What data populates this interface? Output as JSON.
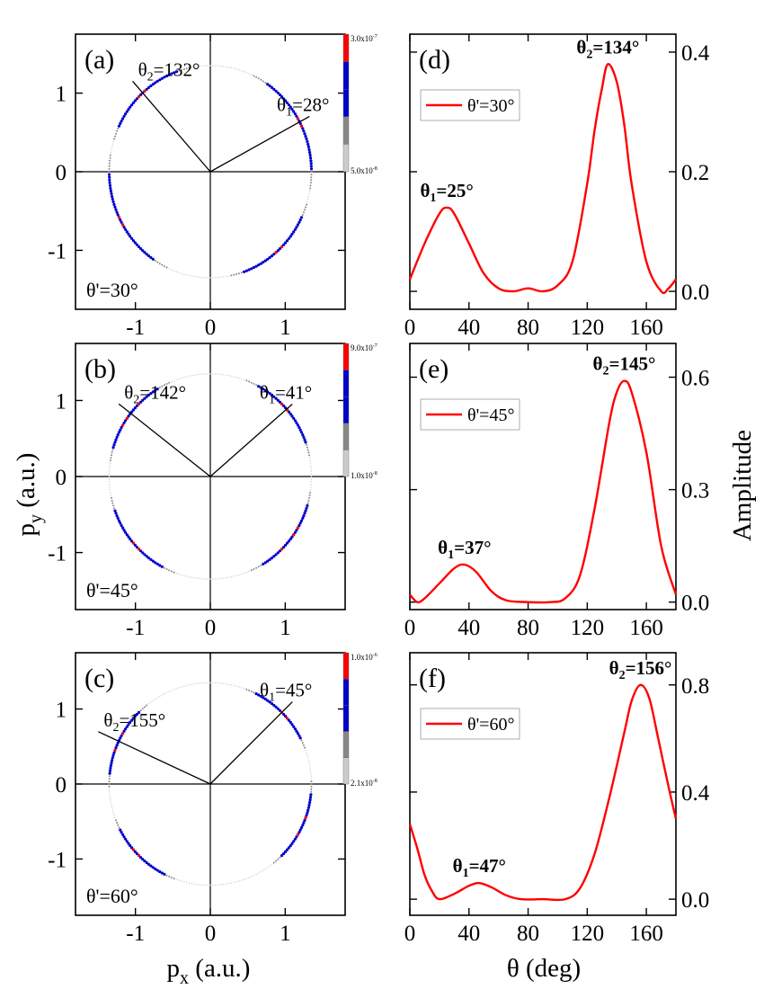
{
  "figure": {
    "ylabel_left": {
      "main": "p",
      "sub": "y",
      "unit": " (a.u.)"
    },
    "xlabel_left": {
      "main": "p",
      "sub": "x",
      "unit": " (a.u.)"
    },
    "ylabel_right": "Amplitude",
    "xlabel_right": "θ (deg)"
  },
  "colors": {
    "curve": "#ff0000",
    "axis": "#000000",
    "blue": "#0000cc",
    "red": "#ff0000",
    "gray": "#888888",
    "light": "#cccccc"
  },
  "chart_data": [
    {
      "id": "a",
      "panel_label": "(a)",
      "type": "scatter",
      "xlim": [
        -1.8,
        1.8
      ],
      "ylim": [
        -1.75,
        1.75
      ],
      "xticks": [
        -1,
        0,
        1
      ],
      "xtick_labels": [
        "-1",
        "0",
        "1"
      ],
      "yticks": [
        -1,
        0,
        1
      ],
      "ytick_labels": [
        "-1",
        "0",
        "1"
      ],
      "ring_radius": 1.35,
      "theta_prime": "θ'=30°",
      "lines": [
        {
          "angle_deg": 28,
          "length": 1.5,
          "label_main": "θ",
          "label_sub": "1",
          "label_rest": "=28°"
        },
        {
          "angle_deg": 132,
          "length": 1.55,
          "label_main": "θ",
          "label_sub": "2",
          "label_rest": "=132°"
        }
      ],
      "lobes": [
        {
          "center_deg": 28,
          "width_deg": 38
        },
        {
          "center_deg": 132,
          "width_deg": 32
        }
      ],
      "colorbar": {
        "max_label": "3.0x10",
        "max_exp": "-7",
        "min_label": "5.0x10",
        "min_exp": "-8"
      }
    },
    {
      "id": "b",
      "panel_label": "(b)",
      "type": "scatter",
      "xlim": [
        -1.8,
        1.8
      ],
      "ylim": [
        -1.75,
        1.75
      ],
      "xticks": [
        -1,
        0,
        1
      ],
      "xtick_labels": [
        "-1",
        "0",
        "1"
      ],
      "yticks": [
        -1,
        0,
        1
      ],
      "ytick_labels": [
        "-1",
        "0",
        "1"
      ],
      "ring_radius": 1.35,
      "theta_prime": "θ'=45°",
      "lines": [
        {
          "angle_deg": 41,
          "length": 1.45,
          "label_main": "θ",
          "label_sub": "1",
          "label_rest": "=41°"
        },
        {
          "angle_deg": 142,
          "length": 1.55,
          "label_main": "θ",
          "label_sub": "2",
          "label_rest": "=142°"
        }
      ],
      "lobes": [
        {
          "center_deg": 41,
          "width_deg": 30
        },
        {
          "center_deg": 142,
          "width_deg": 30
        }
      ],
      "colorbar": {
        "max_label": "9.0x10",
        "max_exp": "-7",
        "min_label": "1.0x10",
        "min_exp": "-8"
      }
    },
    {
      "id": "c",
      "panel_label": "(c)",
      "type": "scatter",
      "xlim": [
        -1.8,
        1.8
      ],
      "ylim": [
        -1.75,
        1.75
      ],
      "xticks": [
        -1,
        0,
        1
      ],
      "xtick_labels": [
        "-1",
        "0",
        "1"
      ],
      "yticks": [
        -1,
        0,
        1
      ],
      "ytick_labels": [
        "-1",
        "0",
        "1"
      ],
      "ring_radius": 1.35,
      "theta_prime": "θ'=60°",
      "lines": [
        {
          "angle_deg": 45,
          "length": 1.55,
          "label_main": "θ",
          "label_sub": "1",
          "label_rest": "=45°"
        },
        {
          "angle_deg": 155,
          "length": 1.65,
          "label_main": "θ",
          "label_sub": "2",
          "label_rest": "=155°"
        }
      ],
      "lobes": [
        {
          "center_deg": 45,
          "width_deg": 26
        },
        {
          "center_deg": 155,
          "width_deg": 28
        }
      ],
      "colorbar": {
        "max_label": "1.0x10",
        "max_exp": "-6",
        "min_label": "2.1x10",
        "min_exp": "-8"
      }
    },
    {
      "id": "d",
      "panel_label": "(d)",
      "type": "line",
      "xlim": [
        0,
        180
      ],
      "ylim": [
        -0.03,
        0.43
      ],
      "xticks": [
        0,
        40,
        80,
        120,
        160
      ],
      "xtick_labels": [
        "0",
        "40",
        "80",
        "120",
        "160"
      ],
      "yticks": [
        0.0,
        0.2,
        0.4
      ],
      "ytick_labels": [
        "0.0",
        "0.2",
        "0.4"
      ],
      "legend": "θ'=30°",
      "x": [
        0,
        10,
        20,
        25,
        30,
        40,
        50,
        60,
        70,
        80,
        90,
        100,
        110,
        120,
        125,
        130,
        134,
        140,
        145,
        150,
        160,
        170,
        175,
        180
      ],
      "y": [
        0.02,
        0.08,
        0.13,
        0.14,
        0.13,
        0.08,
        0.03,
        0.005,
        0.0,
        0.005,
        0.0,
        0.01,
        0.05,
        0.18,
        0.27,
        0.34,
        0.38,
        0.35,
        0.28,
        0.18,
        0.05,
        0.0,
        0.005,
        0.02
      ],
      "peaks": [
        {
          "x": 25,
          "y": 0.14,
          "label_main": "θ",
          "label_sub": "1",
          "label_rest": "=25°"
        },
        {
          "x": 134,
          "y": 0.38,
          "label_main": "θ",
          "label_sub": "2",
          "label_rest": "=134°"
        }
      ]
    },
    {
      "id": "e",
      "panel_label": "(e)",
      "type": "line",
      "xlim": [
        0,
        180
      ],
      "ylim": [
        -0.02,
        0.69
      ],
      "xticks": [
        0,
        40,
        80,
        120,
        160
      ],
      "xtick_labels": [
        "0",
        "40",
        "80",
        "120",
        "160"
      ],
      "yticks": [
        0.0,
        0.3,
        0.6
      ],
      "ytick_labels": [
        "0.0",
        "0.3",
        "0.6"
      ],
      "legend": "θ'=45°",
      "x": [
        0,
        5,
        10,
        20,
        30,
        37,
        45,
        55,
        65,
        80,
        95,
        105,
        115,
        125,
        135,
        140,
        145,
        150,
        160,
        170,
        180
      ],
      "y": [
        0.02,
        0.0,
        0.01,
        0.05,
        0.09,
        0.1,
        0.08,
        0.03,
        0.005,
        0.0,
        0.0,
        0.01,
        0.07,
        0.25,
        0.48,
        0.56,
        0.59,
        0.56,
        0.4,
        0.15,
        0.02
      ],
      "peaks": [
        {
          "x": 37,
          "y": 0.1,
          "label_main": "θ",
          "label_sub": "1",
          "label_rest": "=37°"
        },
        {
          "x": 145,
          "y": 0.59,
          "label_main": "θ",
          "label_sub": "2",
          "label_rest": "=145°"
        }
      ]
    },
    {
      "id": "f",
      "panel_label": "(f)",
      "type": "line",
      "xlim": [
        0,
        180
      ],
      "ylim": [
        -0.06,
        0.92
      ],
      "xticks": [
        0,
        40,
        80,
        120,
        160
      ],
      "xtick_labels": [
        "0",
        "40",
        "80",
        "120",
        "160"
      ],
      "yticks": [
        0.0,
        0.4,
        0.8
      ],
      "ytick_labels": [
        "0.0",
        "0.4",
        "0.8"
      ],
      "legend": "θ'=60°",
      "x": [
        0,
        5,
        10,
        15,
        20,
        30,
        40,
        47,
        55,
        65,
        75,
        90,
        105,
        115,
        125,
        135,
        145,
        150,
        156,
        162,
        168,
        175,
        180
      ],
      "y": [
        0.28,
        0.19,
        0.09,
        0.03,
        0.0,
        0.02,
        0.05,
        0.06,
        0.045,
        0.015,
        0.0,
        0.0,
        0.0,
        0.04,
        0.17,
        0.38,
        0.62,
        0.74,
        0.8,
        0.75,
        0.6,
        0.42,
        0.3
      ],
      "peaks": [
        {
          "x": 47,
          "y": 0.06,
          "label_main": "θ",
          "label_sub": "1",
          "label_rest": "=47°"
        },
        {
          "x": 156,
          "y": 0.8,
          "label_main": "θ",
          "label_sub": "2",
          "label_rest": "=156°"
        }
      ]
    }
  ]
}
